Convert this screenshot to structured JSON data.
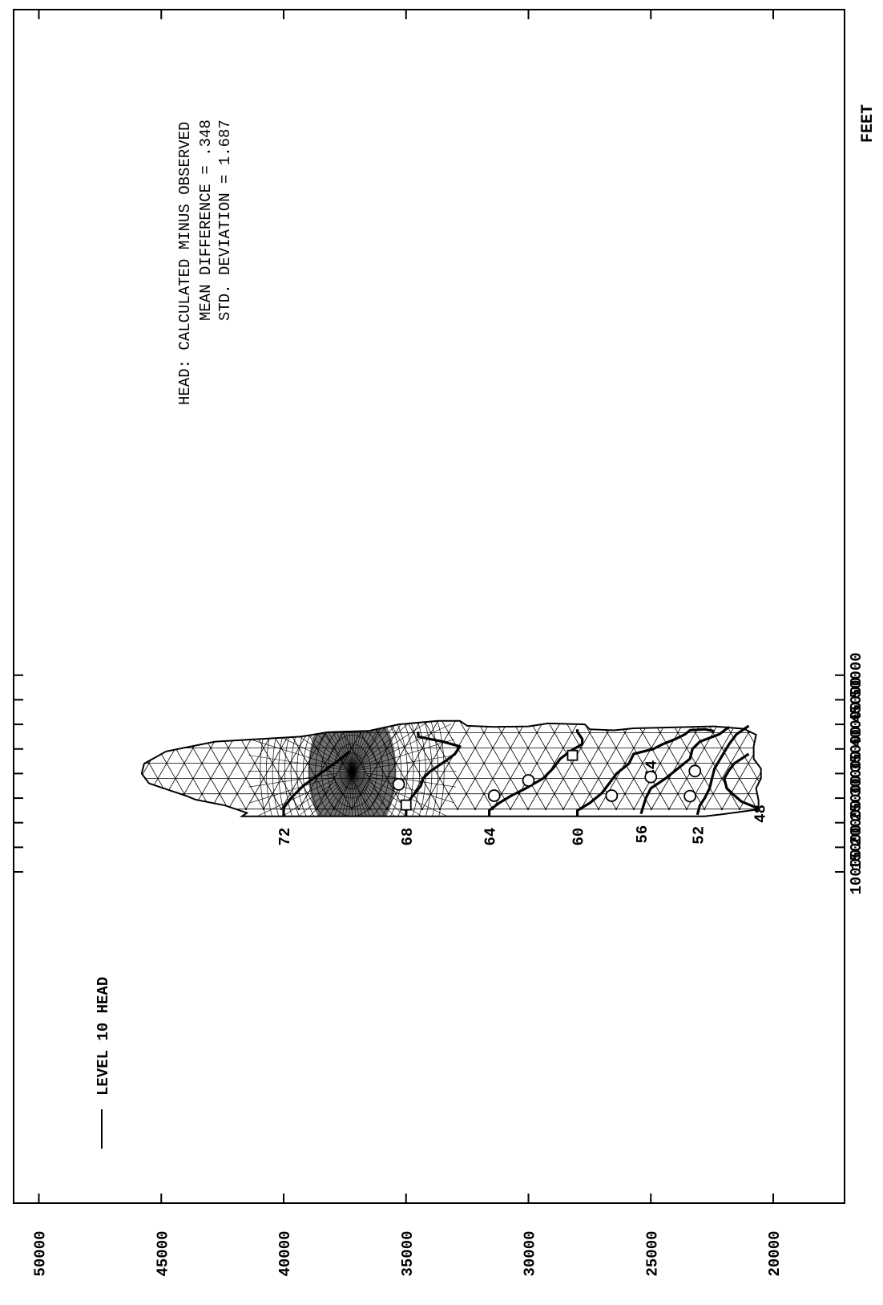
{
  "chart_data": {
    "type": "contour-map",
    "title": "",
    "orientation": "rotated-90-counterclockwise",
    "x_axis": {
      "label": "FEET",
      "range": [
        5000,
        55000
      ],
      "ticks": [
        10000,
        15000,
        20000,
        25000,
        30000,
        35000,
        40000,
        45000,
        50000
      ]
    },
    "y_axis": {
      "label": "",
      "range": [
        19500,
        50500
      ],
      "ticks": [
        20000,
        25000,
        30000,
        35000,
        40000,
        45000,
        50000
      ]
    },
    "legend": {
      "entries": [
        {
          "label": "LEVEL 10 HEAD",
          "line": "solid"
        }
      ],
      "placement": "top-left (rotated view)"
    },
    "annotation": {
      "title": "HEAD: CALCULATED MINUS OBSERVED",
      "line1": "MEAN DIFFERENCE = .348",
      "line2": "STD. DEVIATION   = 1.687"
    },
    "contours": [
      {
        "level": 72,
        "label": "72",
        "points": [
          [
            21300,
            40000
          ],
          [
            23000,
            40000
          ],
          [
            25000,
            39700
          ],
          [
            27500,
            39200
          ],
          [
            30000,
            38500
          ],
          [
            32500,
            37800
          ],
          [
            34500,
            37300
          ]
        ]
      },
      {
        "level": 68,
        "label": "68",
        "points": [
          [
            21300,
            35000
          ],
          [
            23500,
            35000
          ],
          [
            25000,
            34800
          ],
          [
            27500,
            34400
          ],
          [
            29000,
            34300
          ],
          [
            30500,
            34000
          ],
          [
            32500,
            33400
          ],
          [
            34000,
            33000
          ],
          [
            35500,
            32800
          ],
          [
            36500,
            33500
          ],
          [
            37500,
            34500
          ],
          [
            38500,
            34500
          ]
        ]
      },
      {
        "level": 64,
        "label": "64",
        "points": [
          [
            21300,
            31600
          ],
          [
            22500,
            31600
          ],
          [
            24000,
            31200
          ],
          [
            25500,
            30700
          ],
          [
            27000,
            30100
          ],
          [
            29000,
            29400
          ],
          [
            31000,
            29000
          ],
          [
            33000,
            28700
          ],
          [
            34500,
            28300
          ],
          [
            36000,
            27800
          ],
          [
            37000,
            27800
          ],
          [
            38500,
            28000
          ],
          [
            39000,
            28000
          ]
        ]
      },
      {
        "level": 60,
        "label": "60",
        "points": [
          [
            21300,
            28000
          ],
          [
            22500,
            28000
          ],
          [
            24000,
            27500
          ],
          [
            26000,
            27000
          ],
          [
            28000,
            26700
          ],
          [
            30000,
            26400
          ],
          [
            32000,
            25900
          ],
          [
            34000,
            25700
          ],
          [
            35000,
            24900
          ],
          [
            36000,
            24500
          ],
          [
            37000,
            24000
          ],
          [
            38000,
            23600
          ],
          [
            38800,
            23400
          ],
          [
            39000,
            22800
          ],
          [
            38600,
            22400
          ]
        ]
      },
      {
        "level": 56,
        "label": "56",
        "points": [
          [
            21800,
            25400
          ],
          [
            23500,
            25300
          ],
          [
            25000,
            25200
          ],
          [
            27000,
            25000
          ],
          [
            29000,
            24400
          ],
          [
            31000,
            23900
          ],
          [
            33000,
            23400
          ],
          [
            35000,
            23300
          ],
          [
            36500,
            23000
          ],
          [
            38000,
            22200
          ],
          [
            39500,
            21800
          ]
        ]
      },
      {
        "level": 52,
        "label": "52",
        "points": [
          [
            21600,
            23100
          ],
          [
            23500,
            23000
          ],
          [
            25000,
            22800
          ],
          [
            27000,
            22600
          ],
          [
            29000,
            22500
          ],
          [
            31000,
            22400
          ],
          [
            33500,
            22100
          ],
          [
            36000,
            21800
          ],
          [
            38000,
            21500
          ],
          [
            39700,
            21000
          ]
        ]
      },
      {
        "level": 48,
        "label": "48",
        "points": [
          [
            22700,
            20600
          ],
          [
            23300,
            20800
          ],
          [
            24300,
            21300
          ],
          [
            25600,
            21600
          ],
          [
            27000,
            21900
          ],
          [
            29000,
            22000
          ],
          [
            30700,
            21800
          ],
          [
            32000,
            21600
          ],
          [
            34000,
            21000
          ]
        ]
      },
      {
        "level": 44,
        "label": "44",
        "points": []
      }
    ],
    "observation_wells": [
      {
        "x": 25500,
        "y": 31400,
        "marker": "circle"
      },
      {
        "x": 28600,
        "y": 30000,
        "marker": "circle"
      },
      {
        "x": 27800,
        "y": 35300,
        "marker": "circle"
      },
      {
        "x": 25500,
        "y": 26600,
        "marker": "circle"
      },
      {
        "x": 29300,
        "y": 25000,
        "marker": "circle"
      },
      {
        "x": 25400,
        "y": 23400,
        "marker": "circle"
      },
      {
        "x": 30500,
        "y": 23200,
        "marker": "circle"
      },
      {
        "x": 23600,
        "y": 35000,
        "marker": "square"
      },
      {
        "x": 33700,
        "y": 28200,
        "marker": "square"
      }
    ],
    "mesh": {
      "type": "finite-element-triangular",
      "boundary": [
        [
          21300,
          41700
        ],
        [
          22000,
          41500
        ],
        [
          23500,
          42400
        ],
        [
          24700,
          43600
        ],
        [
          25500,
          44000
        ],
        [
          26500,
          44600
        ],
        [
          28000,
          45500
        ],
        [
          30000,
          45800
        ],
        [
          32000,
          45700
        ],
        [
          34500,
          44800
        ],
        [
          36500,
          42800
        ],
        [
          37500,
          39300
        ],
        [
          38400,
          38200
        ],
        [
          38700,
          36500
        ],
        [
          40000,
          35300
        ],
        [
          40700,
          33700
        ],
        [
          40700,
          32800
        ],
        [
          39700,
          32500
        ],
        [
          39500,
          31400
        ],
        [
          39600,
          30000
        ],
        [
          40200,
          29200
        ],
        [
          40000,
          27700
        ],
        [
          39000,
          27500
        ],
        [
          38800,
          26500
        ],
        [
          39200,
          25700
        ],
        [
          39600,
          22400
        ],
        [
          39100,
          21200
        ],
        [
          37900,
          20700
        ],
        [
          35500,
          20800
        ],
        [
          33000,
          20800
        ],
        [
          31000,
          20500
        ],
        [
          29000,
          20500
        ],
        [
          27000,
          20700
        ],
        [
          24500,
          20600
        ],
        [
          22700,
          20600
        ],
        [
          21700,
          22100
        ],
        [
          21300,
          22800
        ]
      ]
    }
  }
}
